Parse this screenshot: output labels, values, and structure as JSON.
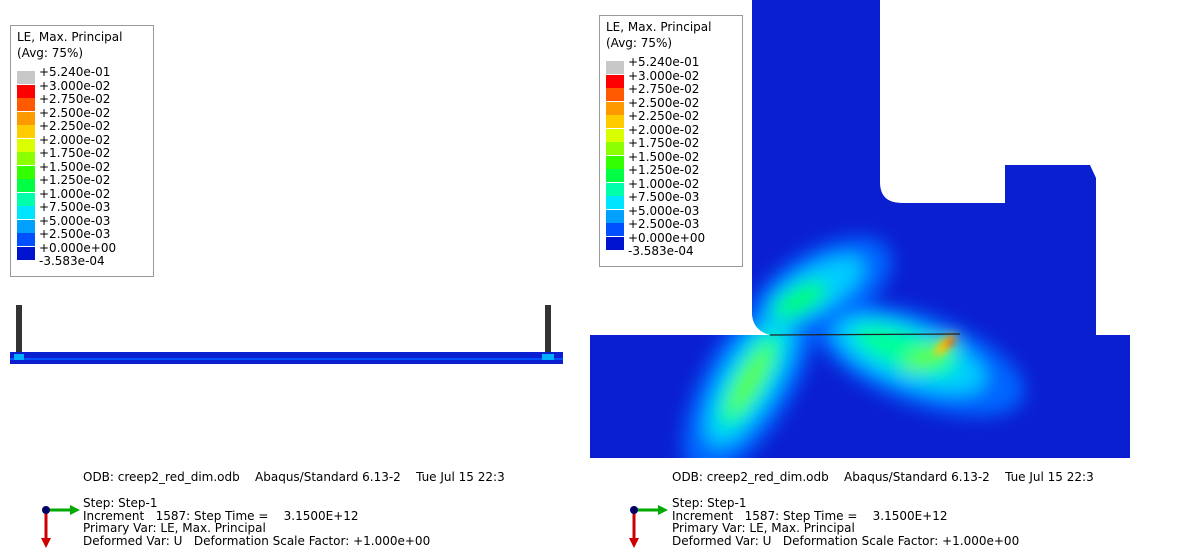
{
  "panels": [
    {
      "legend": {
        "title": [
          "LE, Max. Principal",
          "(Avg: 75%)"
        ],
        "labels": [
          "+5.240e-01",
          "+3.000e-02",
          "+2.750e-02",
          "+2.500e-02",
          "+2.250e-02",
          "+2.000e-02",
          "+1.750e-02",
          "+1.500e-02",
          "+1.250e-02",
          "+1.000e-02",
          "+7.500e-03",
          "+5.000e-03",
          "+2.500e-03",
          "+0.000e+00",
          "-3.583e-04"
        ]
      },
      "odb_line": "ODB: creep2_red_dim.odb    Abaqus/Standard 6.13-2    Tue Jul 15 22:3",
      "info": [
        "Step: Step-1",
        "Increment   1587: Step Time =    3.1500E+12",
        "Primary Var: LE, Max. Principal",
        "Deformed Var: U   Deformation Scale Factor: +1.000e+00"
      ]
    },
    {
      "legend": {
        "title": [
          "LE, Max. Principal",
          "(Avg: 75%)"
        ],
        "labels": [
          "+5.240e-01",
          "+3.000e-02",
          "+2.750e-02",
          "+2.500e-02",
          "+2.250e-02",
          "+2.000e-02",
          "+1.750e-02",
          "+1.500e-02",
          "+1.250e-02",
          "+1.000e-02",
          "+7.500e-03",
          "+5.000e-03",
          "+2.500e-03",
          "+0.000e+00",
          "-3.583e-04"
        ]
      },
      "odb_line": "ODB: creep2_red_dim.odb    Abaqus/Standard 6.13-2    Tue Jul 15 22:3",
      "info": [
        "Step: Step-1",
        "Increment   1587: Step Time =    3.1500E+12",
        "Primary Var: LE, Max. Principal",
        "Deformed Var: U   Deformation Scale Factor: +1.000e+00"
      ]
    }
  ]
}
